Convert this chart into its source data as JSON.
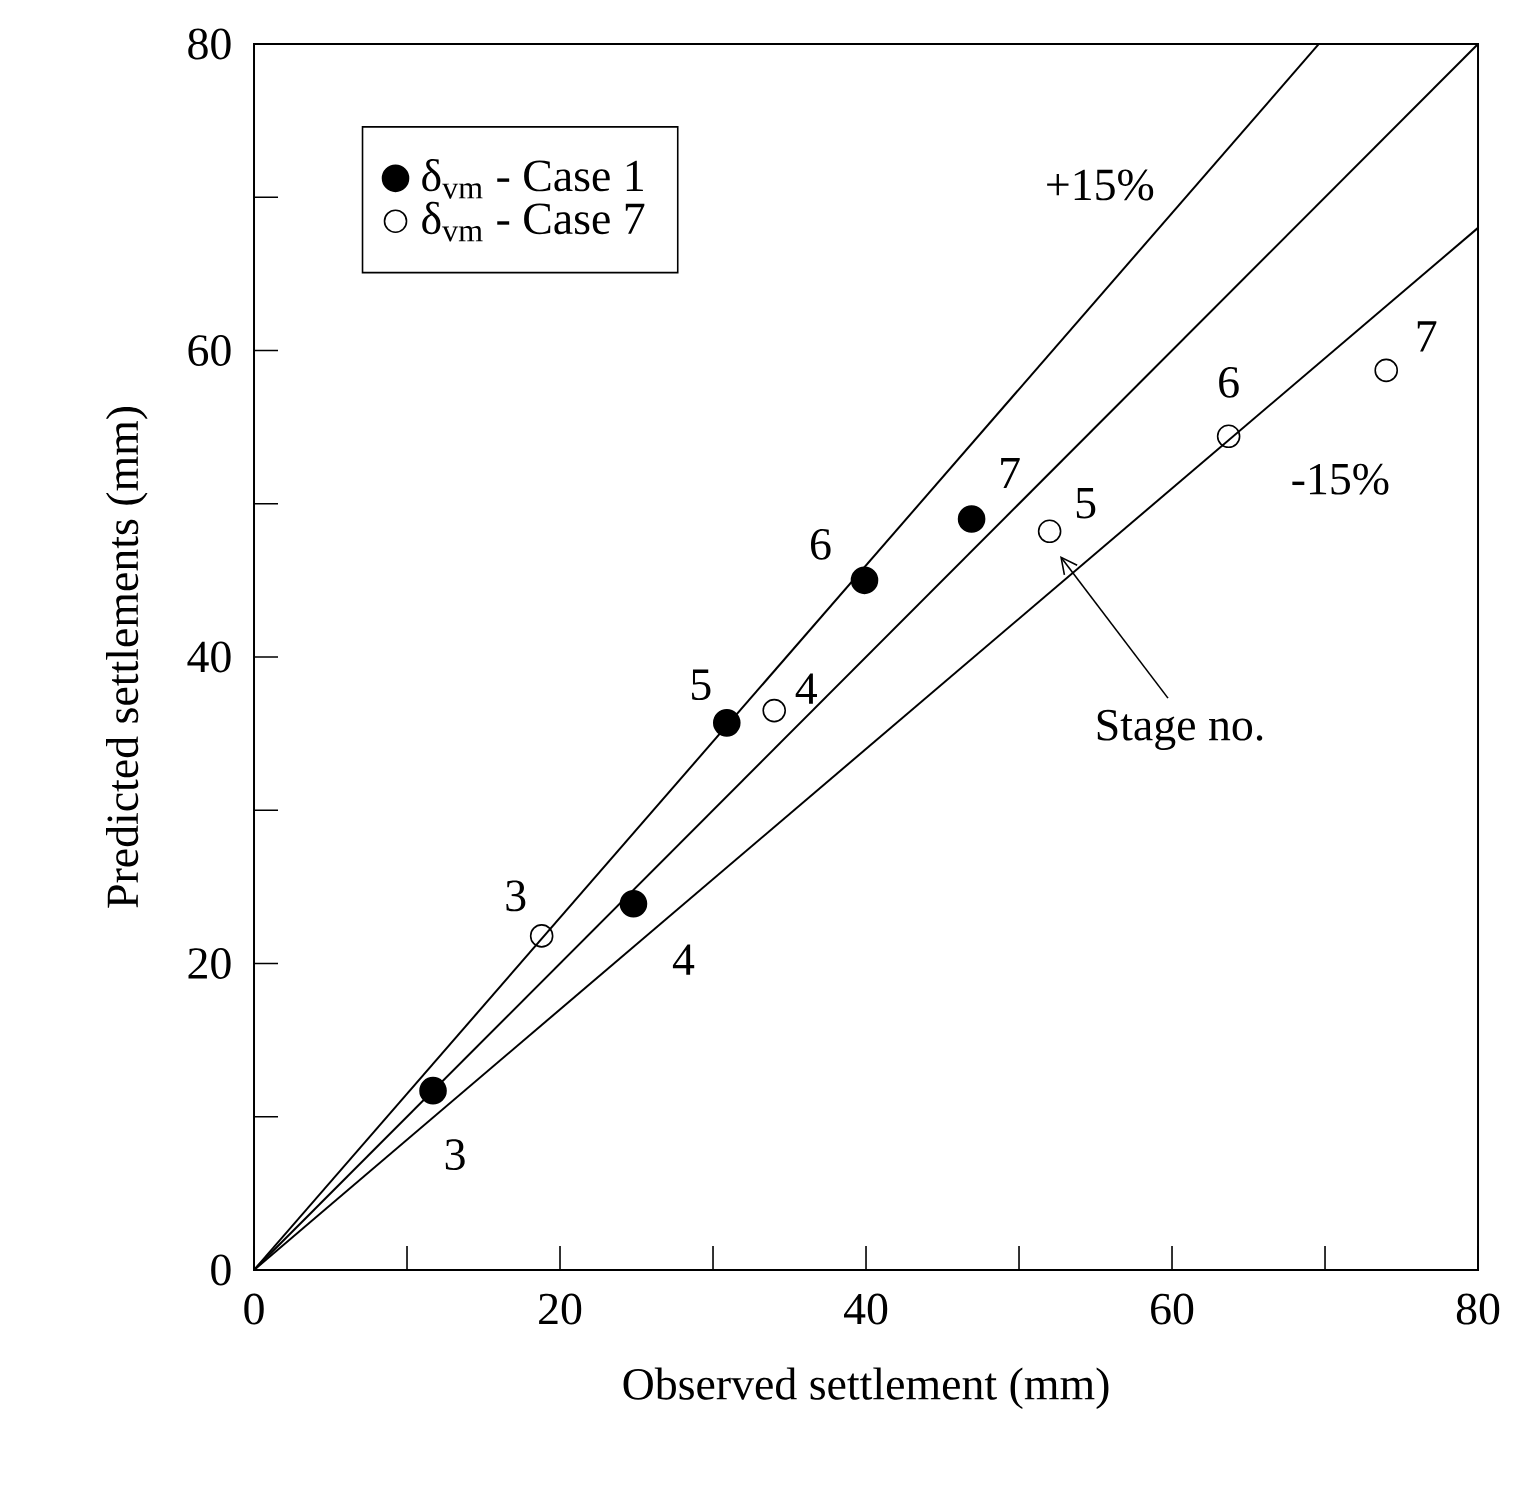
{
  "chart_data": {
    "type": "scatter",
    "xlabel": "Observed settlement (mm)",
    "ylabel": "Predicted settlements (mm)",
    "xlim": [
      0,
      80
    ],
    "ylim": [
      0,
      80
    ],
    "xticks": [
      0,
      {
        "value": 10,
        "label": null
      },
      20,
      {
        "value": 30,
        "label": null
      },
      40,
      {
        "value": 50,
        "label": null
      },
      60,
      {
        "value": 70,
        "label": null
      },
      80
    ],
    "yticks": [
      0,
      {
        "value": 10,
        "label": null
      },
      20,
      {
        "value": 30,
        "label": null
      },
      40,
      {
        "value": 50,
        "label": null
      },
      60,
      {
        "value": 70,
        "label": null
      },
      80
    ],
    "grid": false,
    "legend": "top left",
    "series": [
      {
        "name": "δ$_{vm}$ - Case 1",
        "marker": "circle",
        "color": "#000000",
        "x": [
          11.7,
          24.8,
          30.9,
          39.9,
          46.9
        ],
        "values": [
          11.7,
          23.9,
          35.7,
          45.0,
          49.0
        ]
      },
      {
        "name": "δ$_{vm}$ - Case 7",
        "marker": "circle",
        "color": "#000000",
        "x": [
          18.8,
          34.0,
          52.0,
          63.7,
          74.0
        ],
        "values": [
          21.8,
          36.5,
          48.2,
          54.4,
          58.7
        ]
      },
      {
        "type": "line",
        "marker": "none",
        "color": "#000000",
        "x": [
          0,
          80
        ],
        "values": [
          0,
          80
        ]
      },
      {
        "type": "line",
        "marker": "none",
        "color": "#000000",
        "x": [
          0,
          69.6
        ],
        "values": [
          0,
          80
        ]
      },
      {
        "type": "line",
        "marker": "none",
        "color": "#000000",
        "x": [
          0,
          80
        ],
        "values": [
          0,
          68
        ]
      }
    ],
    "annotations": [
      {
        "text": "3",
        "x": 11.7,
        "y": 11.7
      },
      {
        "text": "4",
        "x": 24.8,
        "y": 23.9
      },
      {
        "text": "5",
        "x": 30.9,
        "y": 35.7
      },
      {
        "text": "6",
        "x": 39.9,
        "y": 45.0
      },
      {
        "text": "7",
        "x": 46.9,
        "y": 49.0
      },
      {
        "text": "3",
        "x": 18.8,
        "y": 21.8
      },
      {
        "text": "4",
        "x": 34.0,
        "y": 36.5
      },
      {
        "text": "5",
        "x": 52.0,
        "y": 48.2
      },
      {
        "text": "6",
        "x": 63.7,
        "y": 54.4
      },
      {
        "text": "7",
        "x": 74.0,
        "y": 58.7
      },
      "+15%",
      "-15%",
      "Stage no."
    ]
  }
}
